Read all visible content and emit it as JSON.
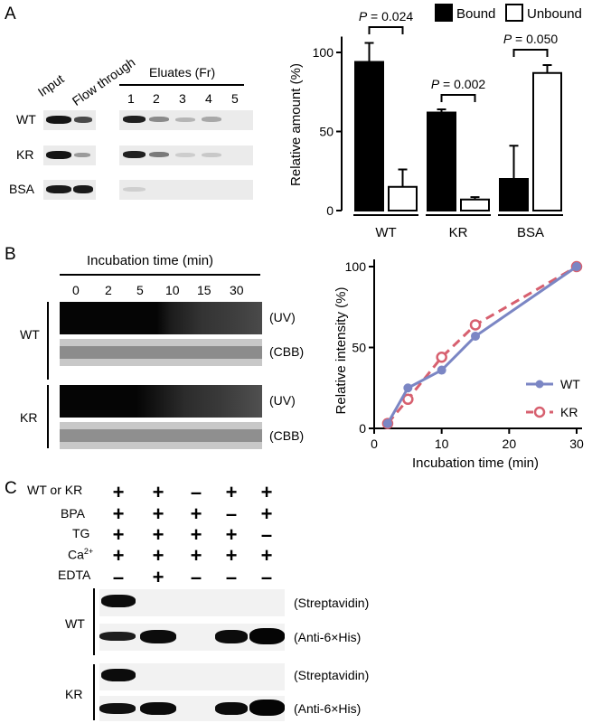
{
  "panels": {
    "a": "A",
    "b": "B",
    "c": "C"
  },
  "panelA": {
    "lane_headers": [
      "Input",
      "Flow through"
    ],
    "eluates_title": "Eluates (Fr)",
    "fractions": [
      "1",
      "2",
      "3",
      "4",
      "5"
    ],
    "rows": [
      "WT",
      "KR",
      "BSA"
    ]
  },
  "panelB": {
    "title": "Incubation time (min)",
    "times": [
      "0",
      "2",
      "5",
      "10",
      "15",
      "30"
    ],
    "rows": [
      "WT",
      "KR"
    ],
    "blot_labels": [
      "(UV)",
      "(CBB)"
    ]
  },
  "panelC": {
    "condition_rows": [
      {
        "label": "WT or KR",
        "signs": [
          "+",
          "+",
          "–",
          "+",
          "+"
        ]
      },
      {
        "label": "BPA",
        "signs": [
          "+",
          "+",
          "+",
          "–",
          "+"
        ]
      },
      {
        "label": "TG",
        "signs": [
          "+",
          "+",
          "+",
          "+",
          "–"
        ]
      },
      {
        "label": "Ca",
        "sup": "2+",
        "signs": [
          "+",
          "+",
          "+",
          "+",
          "+"
        ]
      },
      {
        "label": "EDTA",
        "signs": [
          "–",
          "+",
          "–",
          "–",
          "–"
        ]
      }
    ],
    "rows": [
      "WT",
      "KR"
    ],
    "blot_labels": [
      "(Streptavidin)",
      "(Anti-6×His)"
    ]
  },
  "chart_data": [
    {
      "type": "bar",
      "categories": [
        "WT",
        "KR",
        "BSA"
      ],
      "series": [
        {
          "name": "Bound",
          "values": [
            94,
            62,
            20
          ],
          "errors": [
            12,
            2,
            21
          ],
          "color": "#000000"
        },
        {
          "name": "Unbound",
          "values": [
            15,
            7,
            87
          ],
          "errors": [
            11,
            1.5,
            5
          ],
          "color": "#ffffff"
        }
      ],
      "ylabel": "Relative amount (%)",
      "ylim": [
        0,
        120
      ],
      "yticks": [
        0,
        50,
        100
      ],
      "annotations": [
        {
          "text": "P = 0.024",
          "category": "WT"
        },
        {
          "text": "P = 0.002",
          "category": "KR"
        },
        {
          "text": "P = 0.050",
          "category": "BSA"
        }
      ],
      "legend": "top"
    },
    {
      "type": "line",
      "series": [
        {
          "name": "WT",
          "x": [
            2,
            5,
            10,
            15,
            30
          ],
          "y": [
            3,
            25,
            36,
            57,
            100
          ],
          "color": "#7b86c4",
          "style": "solid"
        },
        {
          "name": "KR",
          "x": [
            2,
            5,
            10,
            15,
            30
          ],
          "y": [
            3,
            18,
            44,
            64,
            100
          ],
          "color": "#d7606f",
          "style": "dashed"
        }
      ],
      "xlabel": "Incubation time (min)",
      "ylabel": "Relative intensity (%)",
      "xlim": [
        0,
        30
      ],
      "ylim": [
        0,
        100
      ],
      "xticks": [
        0,
        10,
        20,
        30
      ],
      "yticks": [
        0,
        50,
        100
      ],
      "legend": "bottom-right"
    }
  ]
}
